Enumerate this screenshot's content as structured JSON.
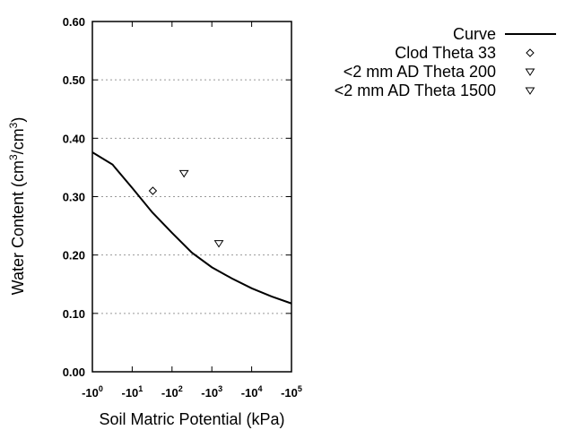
{
  "chart_data": {
    "type": "line",
    "title": "",
    "xlabel": "Soil Matric Potential (kPa)",
    "ylabel_main": "Water Content (cm",
    "ylabel_sup1": "3",
    "ylabel_mid": "/cm",
    "ylabel_sup2": "3",
    "ylabel_end": ")",
    "x_scale": "log (negative)",
    "xlim": [
      1,
      100000
    ],
    "ylim": [
      0,
      0.6
    ],
    "grid": "horizontal dotted",
    "legend_placement": "right",
    "x_ticks": [
      {
        "base": "-10",
        "exp": "0",
        "value": 1
      },
      {
        "base": "-10",
        "exp": "1",
        "value": 10
      },
      {
        "base": "-10",
        "exp": "2",
        "value": 100
      },
      {
        "base": "-10",
        "exp": "3",
        "value": 1000
      },
      {
        "base": "-10",
        "exp": "4",
        "value": 10000
      },
      {
        "base": "-10",
        "exp": "5",
        "value": 100000
      }
    ],
    "y_ticks": [
      {
        "label": "0.00",
        "value": 0
      },
      {
        "label": "0.10",
        "value": 0.1
      },
      {
        "label": "0.20",
        "value": 0.2
      },
      {
        "label": "0.30",
        "value": 0.3
      },
      {
        "label": "0.40",
        "value": 0.4
      },
      {
        "label": "0.50",
        "value": 0.5
      },
      {
        "label": "0.60",
        "value": 0.6
      }
    ],
    "series": [
      {
        "name": "Curve",
        "kind": "line",
        "color": "#000000",
        "points": [
          [
            1,
            0.376
          ],
          [
            3.2,
            0.355
          ],
          [
            10,
            0.315
          ],
          [
            32,
            0.273
          ],
          [
            100,
            0.238
          ],
          [
            316,
            0.204
          ],
          [
            1000,
            0.179
          ],
          [
            3162,
            0.16
          ],
          [
            10000,
            0.143
          ],
          [
            31623,
            0.129
          ],
          [
            100000,
            0.117
          ]
        ]
      },
      {
        "name": "Clod Theta 33",
        "kind": "marker",
        "marker": "diamond",
        "points": [
          [
            33,
            0.31
          ]
        ]
      },
      {
        "name": "<2 mm AD Theta 200",
        "kind": "marker",
        "marker": "triangle-down",
        "points": [
          [
            200,
            0.34
          ]
        ]
      },
      {
        "name": "<2 mm AD Theta 1500",
        "kind": "marker",
        "marker": "triangle-down",
        "points": [
          [
            1500,
            0.22
          ]
        ]
      }
    ]
  }
}
